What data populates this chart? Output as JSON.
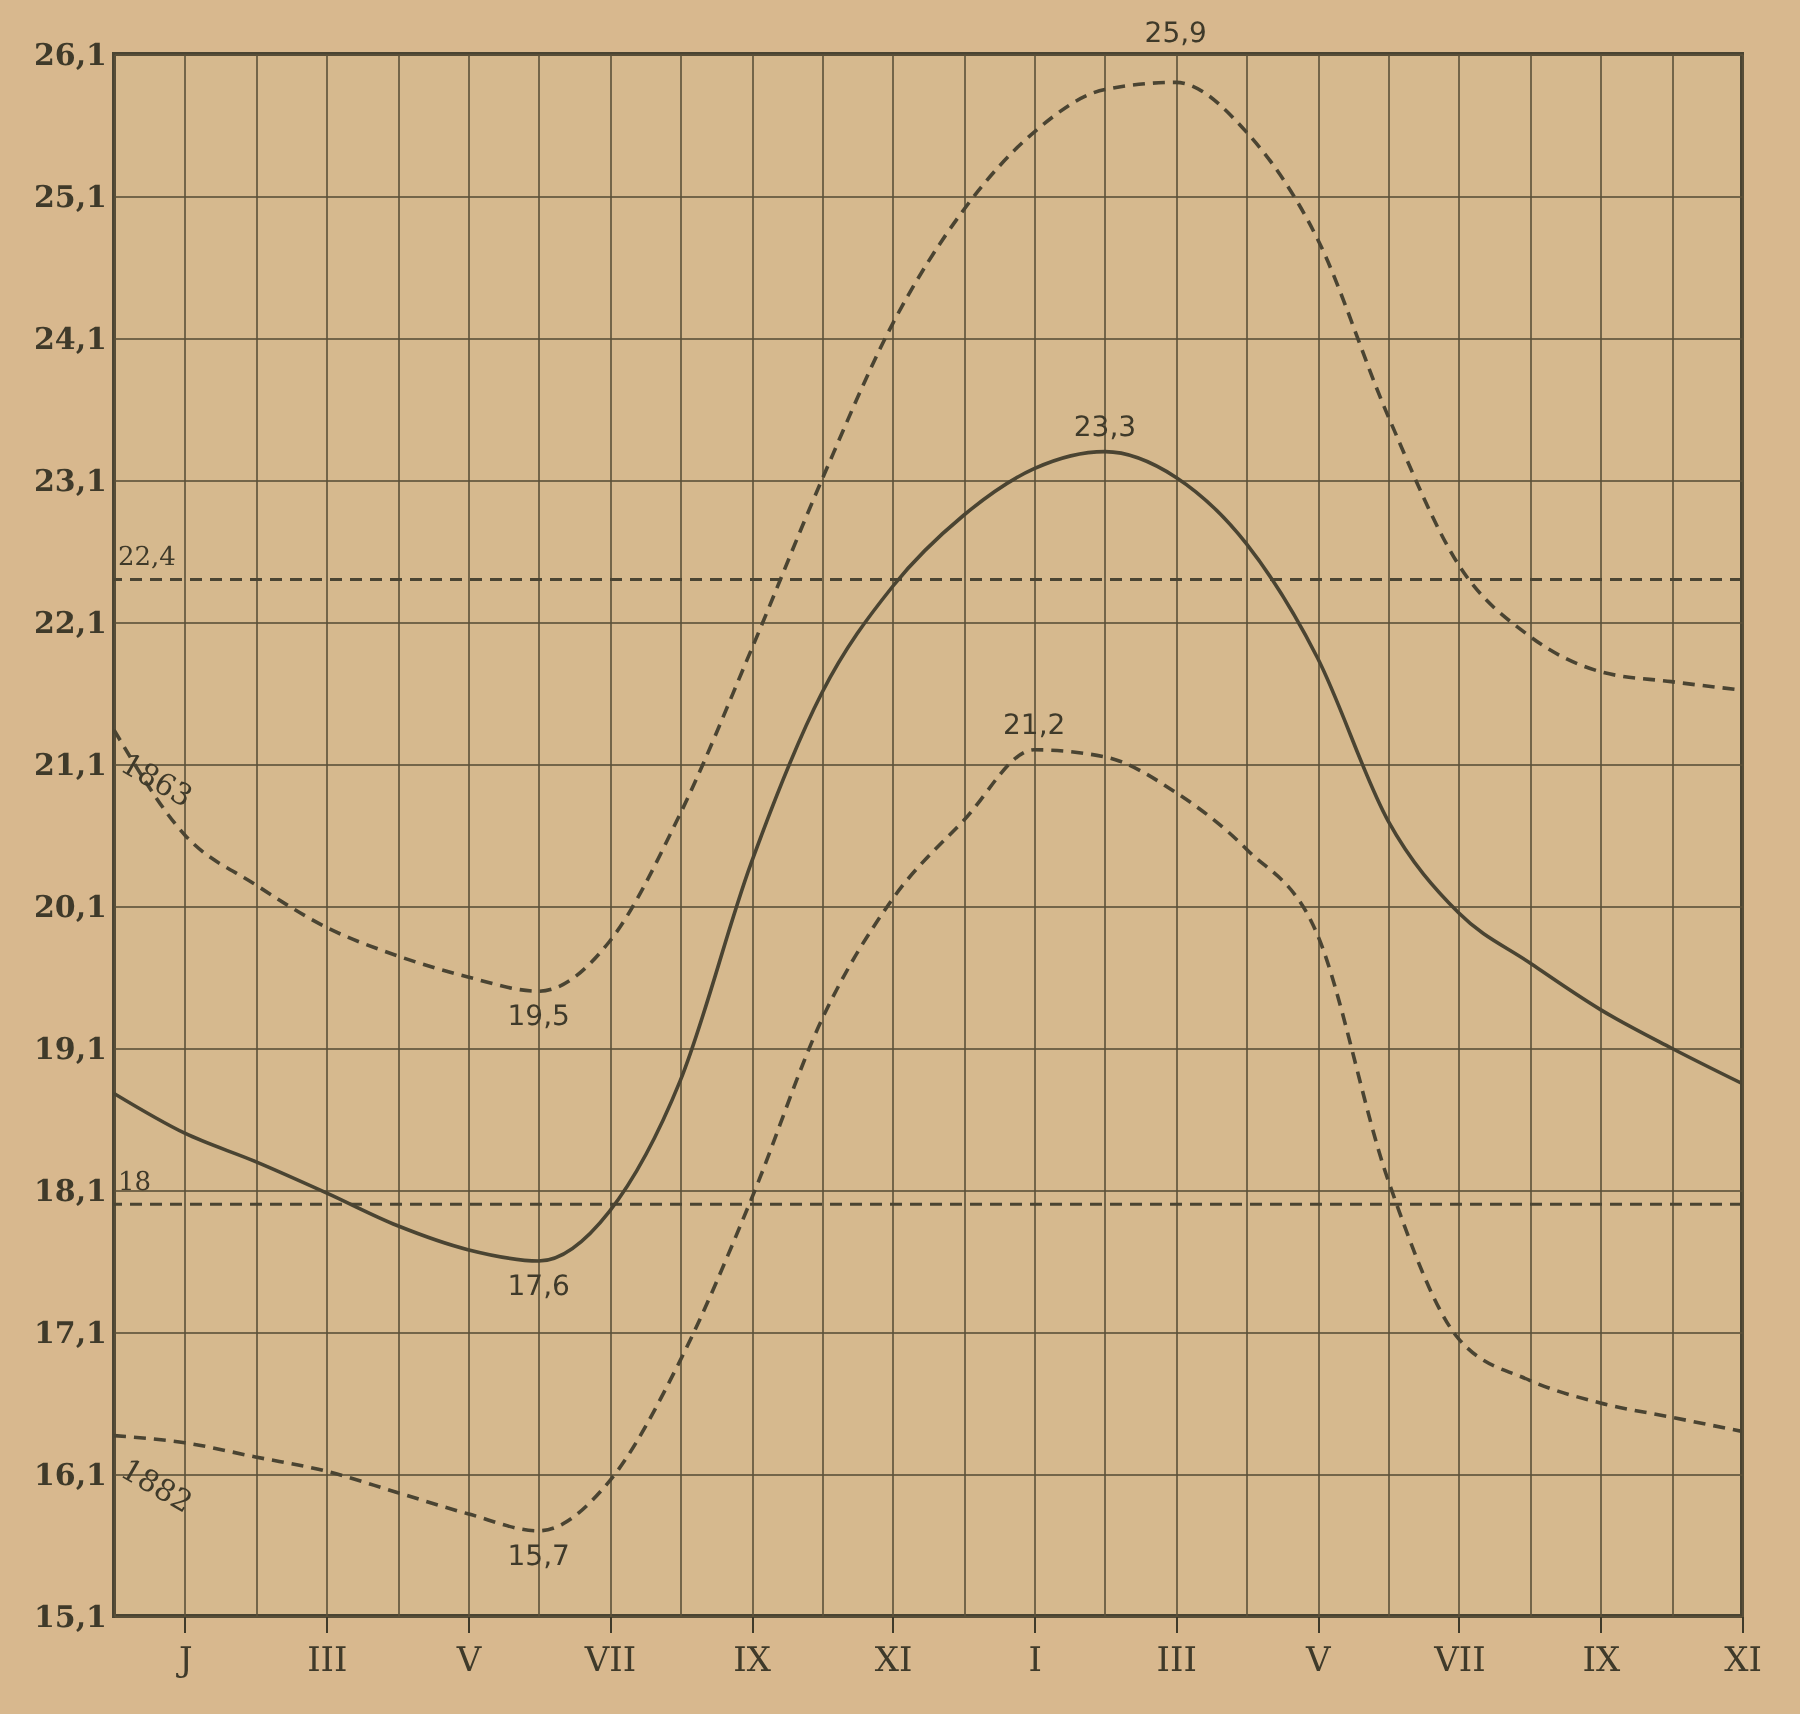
{
  "chart_data": {
    "type": "line",
    "categories": [
      null,
      "J",
      null,
      "III",
      null,
      "V",
      null,
      "VII",
      null,
      "IX",
      null,
      "XI",
      null,
      "I",
      null,
      "III",
      null,
      "V",
      null,
      "VII",
      null,
      "IX",
      null,
      "XI"
    ],
    "ylim": [
      15.1,
      26.1
    ],
    "yticks": [
      {
        "value": 15.1,
        "label": "15,1"
      },
      {
        "value": 16.1,
        "label": "16,1"
      },
      {
        "value": 17.1,
        "label": "17,1"
      },
      {
        "value": 18.1,
        "label": "18,1"
      },
      {
        "value": 19.1,
        "label": "19,1"
      },
      {
        "value": 20.1,
        "label": "20,1"
      },
      {
        "value": 21.1,
        "label": "21,1"
      },
      {
        "value": 22.1,
        "label": "22,1"
      },
      {
        "value": 23.1,
        "label": "23,1"
      },
      {
        "value": 24.1,
        "label": "24,1"
      },
      {
        "value": 25.1,
        "label": "25,1"
      },
      {
        "value": 26.1,
        "label": "26,1"
      }
    ],
    "grid": true,
    "series": [
      {
        "name": "1863",
        "color": "#4a4432",
        "line_style": "dashed",
        "values": [
          21.34,
          20.6,
          20.25,
          19.95,
          19.75,
          19.6,
          19.5,
          19.85,
          20.75,
          21.9,
          23.1,
          24.2,
          25.0,
          25.55,
          25.85,
          25.9,
          25.55,
          24.8,
          23.55,
          22.5,
          22.0,
          21.75,
          21.68,
          21.62
        ]
      },
      {
        "color": "#4a4432",
        "line_style": "solid",
        "values": [
          18.78,
          18.5,
          18.3,
          18.08,
          17.85,
          17.68,
          17.6,
          17.95,
          18.87,
          20.4,
          21.6,
          22.35,
          22.85,
          23.18,
          23.3,
          23.12,
          22.65,
          21.85,
          20.7,
          20.05,
          19.7,
          19.37,
          19.1,
          18.85
        ]
      },
      {
        "name": "1882",
        "color": "#4a4432",
        "line_style": "dashed",
        "values": [
          16.37,
          16.32,
          16.22,
          16.12,
          15.97,
          15.82,
          15.7,
          16.05,
          16.9,
          18.03,
          19.3,
          20.15,
          20.7,
          21.2,
          21.15,
          20.9,
          20.5,
          19.9,
          18.17,
          17.05,
          16.76,
          16.6,
          16.5,
          16.4
        ]
      }
    ],
    "ref_lines": [
      {
        "axis": "y",
        "value": 22.4,
        "label": "22,4",
        "color": "#4a4432",
        "line_style": "dashed"
      },
      {
        "axis": "y",
        "value": 18,
        "label": "18",
        "color": "#4a4432",
        "line_style": "dashed"
      }
    ],
    "annotations": [
      {
        "text": "25,9",
        "y": 25.9
      },
      {
        "text": "23,3",
        "y": 23.3
      },
      {
        "text": "21,2",
        "y": 21.2
      },
      {
        "text": "19,5",
        "y": 19.5
      },
      {
        "text": "17,6",
        "y": 17.6
      },
      {
        "text": "15,7",
        "y": 15.7
      }
    ]
  }
}
